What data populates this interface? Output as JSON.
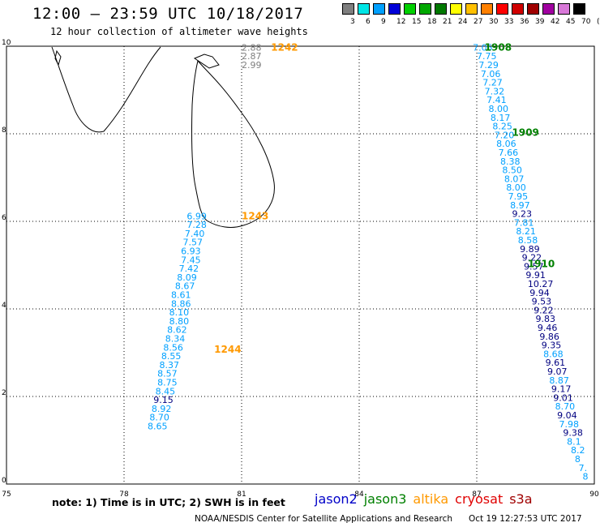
{
  "title": "12:00 – 23:59 UTC 10/18/2017",
  "subtitle": "12 hour collection of altimeter wave heights",
  "color_scale": {
    "labels": [
      "3",
      "6",
      "9",
      "12",
      "15",
      "18",
      "21",
      "24",
      "27",
      "30",
      "33",
      "36",
      "39",
      "42",
      "45",
      "70",
      "(ft)"
    ],
    "colors": [
      "#7f7f7f",
      "#00e6e6",
      "#00a0ff",
      "#0000d8",
      "#00d000",
      "#00a800",
      "#007800",
      "#ffff00",
      "#ffc000",
      "#ff8000",
      "#ff0000",
      "#d00000",
      "#a00000",
      "#a000a0",
      "#d878d8",
      "#000000"
    ]
  },
  "axes": {
    "x_ticks": [
      "75",
      "78",
      "81",
      "84",
      "87",
      "90"
    ],
    "y_ticks": [
      "0",
      "2",
      "4",
      "6",
      "8",
      "10"
    ],
    "xlim": [
      75,
      90
    ],
    "ylim": [
      0,
      10
    ]
  },
  "note": "note: 1) Time is in UTC; 2) SWH is in feet",
  "satellites": [
    {
      "name": "jason2",
      "color": "#0000c8"
    },
    {
      "name": "jason3",
      "color": "#008000"
    },
    {
      "name": "altika",
      "color": "#ff9900"
    },
    {
      "name": "cryosat",
      "color": "#e00000"
    },
    {
      "name": "s3a",
      "color": "#a00000"
    }
  ],
  "credit": "NOAA/NESDIS Center for Satellite Applications and Research",
  "timestamp": "Oct 19 12:27:53 UTC 2017",
  "pass_times": [
    {
      "text": "1242",
      "lon": 81.75,
      "lat": 9.9,
      "color": "#ff9900"
    },
    {
      "text": "1243",
      "lon": 81.0,
      "lat": 6.05,
      "color": "#ff9900"
    },
    {
      "text": "1244",
      "lon": 80.3,
      "lat": 3.0,
      "color": "#ff9900"
    },
    {
      "text": "1908",
      "lon": 87.2,
      "lat": 9.9,
      "color": "#008000"
    },
    {
      "text": "1909",
      "lon": 87.9,
      "lat": 7.95,
      "color": "#008000"
    },
    {
      "text": "1910",
      "lon": 88.3,
      "lat": 4.95,
      "color": "#008000"
    }
  ],
  "tracks": [
    {
      "name": "altika-north",
      "color": "#7f7f7f",
      "points": [
        {
          "lon": 81.0,
          "lat": 9.9,
          "v": "2.88"
        },
        {
          "lon": 81.0,
          "lat": 9.7,
          "v": "2.87"
        },
        {
          "lon": 81.0,
          "lat": 9.5,
          "v": "2.99"
        }
      ]
    },
    {
      "name": "altika-south",
      "color": "#00a0ff",
      "points": [
        {
          "lon": 79.6,
          "lat": 6.05,
          "v": "6.99"
        },
        {
          "lon": 79.6,
          "lat": 5.85,
          "v": "7.28"
        },
        {
          "lon": 79.55,
          "lat": 5.65,
          "v": "7.40"
        },
        {
          "lon": 79.5,
          "lat": 5.45,
          "v": "7.57"
        },
        {
          "lon": 79.45,
          "lat": 5.25,
          "v": "6.93"
        },
        {
          "lon": 79.45,
          "lat": 5.05,
          "v": "7.45"
        },
        {
          "lon": 79.4,
          "lat": 4.85,
          "v": "7.42"
        },
        {
          "lon": 79.35,
          "lat": 4.65,
          "v": "8.09"
        },
        {
          "lon": 79.3,
          "lat": 4.45,
          "v": "8.67"
        },
        {
          "lon": 79.2,
          "lat": 4.25,
          "v": "8.61"
        },
        {
          "lon": 79.2,
          "lat": 4.05,
          "v": "8.86"
        },
        {
          "lon": 79.15,
          "lat": 3.85,
          "v": "8.10"
        },
        {
          "lon": 79.15,
          "lat": 3.65,
          "v": "8.80"
        },
        {
          "lon": 79.1,
          "lat": 3.45,
          "v": "8.62"
        },
        {
          "lon": 79.05,
          "lat": 3.25,
          "v": "8.34"
        },
        {
          "lon": 79.0,
          "lat": 3.05,
          "v": "8.56"
        },
        {
          "lon": 78.95,
          "lat": 2.85,
          "v": "8.55"
        },
        {
          "lon": 78.9,
          "lat": 2.65,
          "v": "8.37"
        },
        {
          "lon": 78.85,
          "lat": 2.45,
          "v": "8.57"
        },
        {
          "lon": 78.85,
          "lat": 2.25,
          "v": "8.75"
        },
        {
          "lon": 78.8,
          "lat": 2.05,
          "v": "8.45"
        },
        {
          "lon": 78.75,
          "lat": 1.85,
          "v": "9.15",
          "dark": true
        },
        {
          "lon": 78.7,
          "lat": 1.65,
          "v": "8.92"
        },
        {
          "lon": 78.65,
          "lat": 1.45,
          "v": "8.70"
        },
        {
          "lon": 78.6,
          "lat": 1.25,
          "v": "8.65"
        }
      ]
    },
    {
      "name": "jason3-track",
      "color": "#00a0ff",
      "points": [
        {
          "lon": 86.9,
          "lat": 9.9,
          "v": "7.05"
        },
        {
          "lon": 87.0,
          "lat": 9.7,
          "v": "7.75"
        },
        {
          "lon": 87.05,
          "lat": 9.5,
          "v": "7.29"
        },
        {
          "lon": 87.1,
          "lat": 9.3,
          "v": "7.06"
        },
        {
          "lon": 87.15,
          "lat": 9.1,
          "v": "7.27"
        },
        {
          "lon": 87.2,
          "lat": 8.9,
          "v": "7.32"
        },
        {
          "lon": 87.25,
          "lat": 8.7,
          "v": "7.41"
        },
        {
          "lon": 87.3,
          "lat": 8.5,
          "v": "8.00"
        },
        {
          "lon": 87.35,
          "lat": 8.3,
          "v": "8.17"
        },
        {
          "lon": 87.4,
          "lat": 8.1,
          "v": "8.25"
        },
        {
          "lon": 87.45,
          "lat": 7.9,
          "v": "7.20"
        },
        {
          "lon": 87.5,
          "lat": 7.7,
          "v": "8.06"
        },
        {
          "lon": 87.55,
          "lat": 7.5,
          "v": "7.66"
        },
        {
          "lon": 87.6,
          "lat": 7.3,
          "v": "8.38"
        },
        {
          "lon": 87.65,
          "lat": 7.1,
          "v": "8.50"
        },
        {
          "lon": 87.7,
          "lat": 6.9,
          "v": "8.07"
        },
        {
          "lon": 87.75,
          "lat": 6.7,
          "v": "8.00"
        },
        {
          "lon": 87.8,
          "lat": 6.5,
          "v": "7.95"
        },
        {
          "lon": 87.85,
          "lat": 6.3,
          "v": "8.97"
        },
        {
          "lon": 87.9,
          "lat": 6.1,
          "v": "9.23",
          "dark": true
        },
        {
          "lon": 87.95,
          "lat": 5.9,
          "v": "7.81"
        },
        {
          "lon": 88.0,
          "lat": 5.7,
          "v": "8.21"
        },
        {
          "lon": 88.05,
          "lat": 5.5,
          "v": "8.58"
        },
        {
          "lon": 88.1,
          "lat": 5.3,
          "v": "9.89",
          "dark": true
        },
        {
          "lon": 88.15,
          "lat": 5.1,
          "v": "9.22",
          "dark": true
        },
        {
          "lon": 88.2,
          "lat": 4.9,
          "v": "9.57",
          "dark": true
        },
        {
          "lon": 88.25,
          "lat": 4.7,
          "v": "9.91",
          "dark": true
        },
        {
          "lon": 88.3,
          "lat": 4.5,
          "v": "10.27",
          "dark": true
        },
        {
          "lon": 88.35,
          "lat": 4.3,
          "v": "9.94",
          "dark": true
        },
        {
          "lon": 88.4,
          "lat": 4.1,
          "v": "9.53",
          "dark": true
        },
        {
          "lon": 88.45,
          "lat": 3.9,
          "v": "9.22",
          "dark": true
        },
        {
          "lon": 88.5,
          "lat": 3.7,
          "v": "9.83",
          "dark": true
        },
        {
          "lon": 88.55,
          "lat": 3.5,
          "v": "9.46",
          "dark": true
        },
        {
          "lon": 88.6,
          "lat": 3.3,
          "v": "9.86",
          "dark": true
        },
        {
          "lon": 88.65,
          "lat": 3.1,
          "v": "9.35",
          "dark": true
        },
        {
          "lon": 88.7,
          "lat": 2.9,
          "v": "8.68"
        },
        {
          "lon": 88.75,
          "lat": 2.7,
          "v": "9.61",
          "dark": true
        },
        {
          "lon": 88.8,
          "lat": 2.5,
          "v": "9.07",
          "dark": true
        },
        {
          "lon": 88.85,
          "lat": 2.3,
          "v": "8.87"
        },
        {
          "lon": 88.9,
          "lat": 2.1,
          "v": "9.17",
          "dark": true
        },
        {
          "lon": 88.95,
          "lat": 1.9,
          "v": "9.01",
          "dark": true
        },
        {
          "lon": 89.0,
          "lat": 1.7,
          "v": "8.70"
        },
        {
          "lon": 89.05,
          "lat": 1.5,
          "v": "9.04",
          "dark": true
        },
        {
          "lon": 89.1,
          "lat": 1.3,
          "v": "7.98"
        },
        {
          "lon": 89.2,
          "lat": 1.1,
          "v": "9.38",
          "dark": true
        },
        {
          "lon": 89.3,
          "lat": 0.9,
          "v": "8.1"
        },
        {
          "lon": 89.4,
          "lat": 0.7,
          "v": "8.2"
        },
        {
          "lon": 89.5,
          "lat": 0.5,
          "v": "8"
        },
        {
          "lon": 89.6,
          "lat": 0.3,
          "v": "7."
        },
        {
          "lon": 89.7,
          "lat": 0.1,
          "v": "8"
        }
      ]
    }
  ]
}
